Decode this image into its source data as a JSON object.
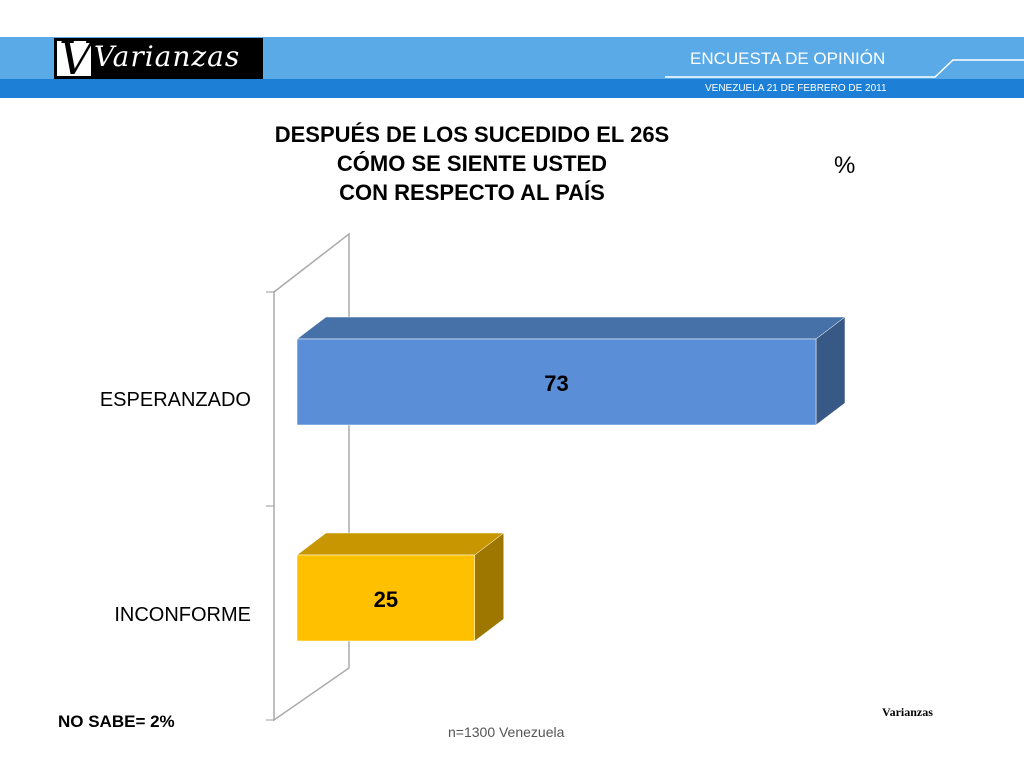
{
  "header": {
    "brand": "Varianzas",
    "survey_title": "ENCUESTA DE OPINIÓN",
    "survey_date": "VENEZUELA  21 DE  FEBRERO DE 2011",
    "colors": {
      "band_light": "#5aaae8",
      "band_dark": "#1e7fd6"
    }
  },
  "chart_data": {
    "type": "bar",
    "orientation": "horizontal",
    "title": "DESPUÉS DE LOS SUCEDIDO EL 26S\nCÓMO SE SIENTE USTED\nCON RESPECTO AL PAÍS",
    "unit_label": "%",
    "categories": [
      "ESPERANZADO",
      "INCONFORME"
    ],
    "values": [
      73,
      25
    ],
    "colors": [
      "#5a8fd8",
      "#ffc000"
    ],
    "xlim": [
      0,
      80
    ],
    "grid": false,
    "legend": "none",
    "style": "3d"
  },
  "footer": {
    "no_sabe": "NO SABE= 2%",
    "sample": "n=1300  Venezuela",
    "brand_mark": "Varianzas"
  }
}
